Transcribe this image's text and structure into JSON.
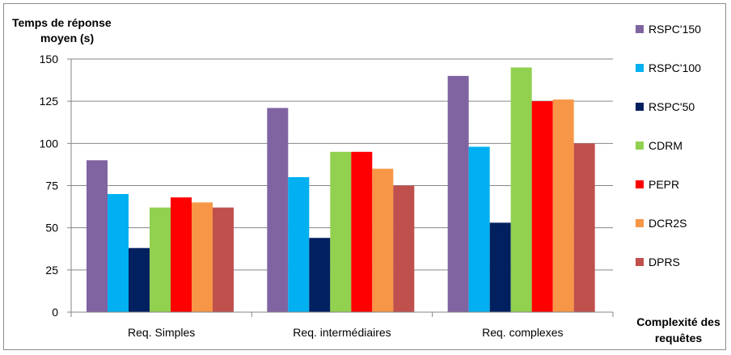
{
  "chart_data": {
    "type": "bar",
    "ylabel": [
      "Temps de réponse",
      "moyen (s)"
    ],
    "xlabel": [
      "Complexité des",
      "requêtes"
    ],
    "categories": [
      "Req. Simples",
      "Req. intermédiaires",
      "Req. complexes"
    ],
    "ylim": [
      0,
      150
    ],
    "yticks": [
      0,
      25,
      50,
      75,
      100,
      125,
      150
    ],
    "grid": true,
    "legend_position": "right",
    "series": [
      {
        "name": "RSPC'150",
        "color": "#8064a2",
        "values": [
          90,
          121,
          140
        ]
      },
      {
        "name": "RSPC'100",
        "color": "#00b0f0",
        "values": [
          70,
          80,
          98
        ]
      },
      {
        "name": "RSPC'50",
        "color": "#002060",
        "values": [
          38,
          44,
          53
        ]
      },
      {
        "name": "CDRM",
        "color": "#92d050",
        "values": [
          62,
          95,
          145
        ]
      },
      {
        "name": "PEPR",
        "color": "#ff0000",
        "values": [
          68,
          95,
          125
        ]
      },
      {
        "name": "DCR2S",
        "color": "#f79646",
        "values": [
          65,
          85,
          126
        ]
      },
      {
        "name": "DPRS",
        "color": "#c0504d",
        "values": [
          62,
          75,
          100
        ]
      }
    ]
  }
}
